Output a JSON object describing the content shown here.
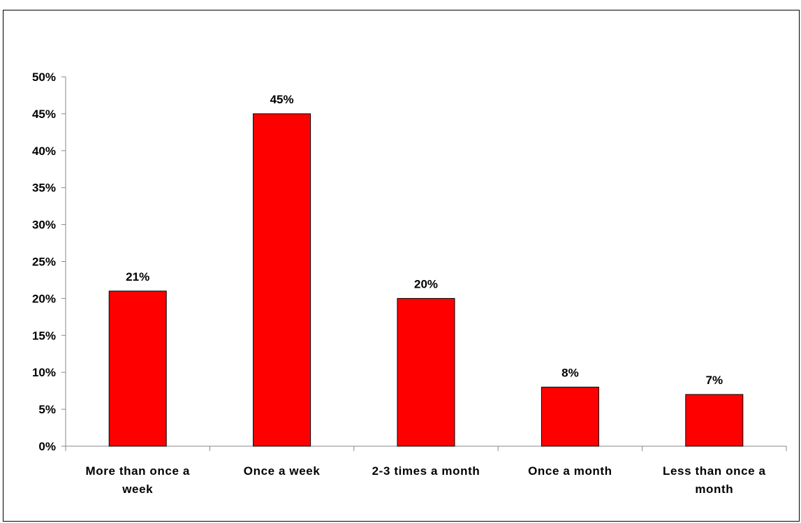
{
  "chart_data": {
    "type": "bar",
    "categories": [
      [
        "More than once a",
        "week"
      ],
      [
        "Once a week"
      ],
      [
        "2-3 times a month"
      ],
      [
        "Once a month"
      ],
      [
        "Less than once a",
        "month"
      ]
    ],
    "values": [
      21,
      45,
      20,
      8,
      7
    ],
    "data_labels": [
      "21%",
      "45%",
      "20%",
      "8%",
      "7%"
    ],
    "y_ticks": [
      "0%",
      "5%",
      "10%",
      "15%",
      "20%",
      "25%",
      "30%",
      "35%",
      "40%",
      "45%",
      "50%"
    ],
    "ylim": [
      0,
      50
    ],
    "grid": false,
    "legend": "none",
    "bar_color": "#ff0000",
    "title": "",
    "xlabel": "",
    "ylabel": ""
  }
}
